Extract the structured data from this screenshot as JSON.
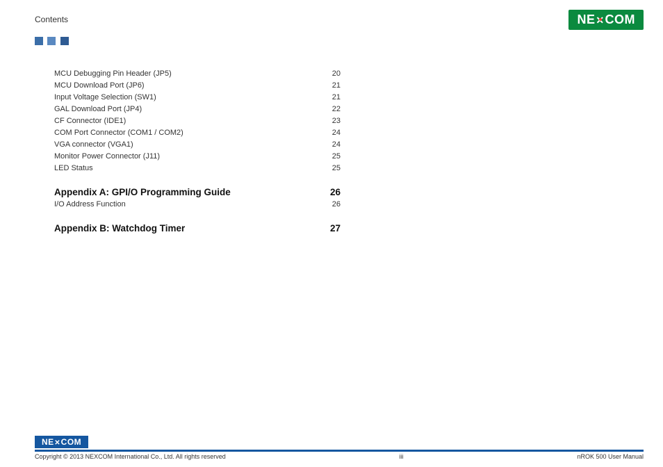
{
  "header": {
    "section_label": "Contents",
    "logo_text_left": "NE",
    "logo_text_right": "COM"
  },
  "toc": {
    "items": [
      {
        "label": "MCU Debugging Pin Header (JP5)",
        "page": "20"
      },
      {
        "label": "MCU Download Port (JP6)",
        "page": "21"
      },
      {
        "label": "Input Voltage Selection (SW1)",
        "page": "21"
      },
      {
        "label": "GAL Download Port (JP4)",
        "page": "22"
      },
      {
        "label": "CF Connector (IDE1)",
        "page": "23"
      },
      {
        "label": "COM Port Connector (COM1 / COM2)",
        "page": "24"
      },
      {
        "label": "VGA connector (VGA1)",
        "page": "24"
      },
      {
        "label": "Monitor Power Connector (J11)",
        "page": "25"
      },
      {
        "label": "LED Status",
        "page": "25"
      }
    ],
    "sections": [
      {
        "title": "Appendix A: GPI/O Programming Guide",
        "page": "26",
        "items": [
          {
            "label": "I/O Address Function",
            "page": "26"
          }
        ]
      },
      {
        "title": "Appendix B: Watchdog Timer",
        "page": "27",
        "items": []
      }
    ]
  },
  "footer": {
    "copyright": "Copyright © 2013 NEXCOM International Co., Ltd. All rights reserved",
    "page_number": "iii",
    "doc_title": "nROK 500 User Manual"
  },
  "colors": {
    "logo_green": "#0b8a3f",
    "rule_blue": "#1557a0",
    "square1": "#3b6ea8",
    "square2": "#5a89c1",
    "square3": "#2f5b93"
  }
}
